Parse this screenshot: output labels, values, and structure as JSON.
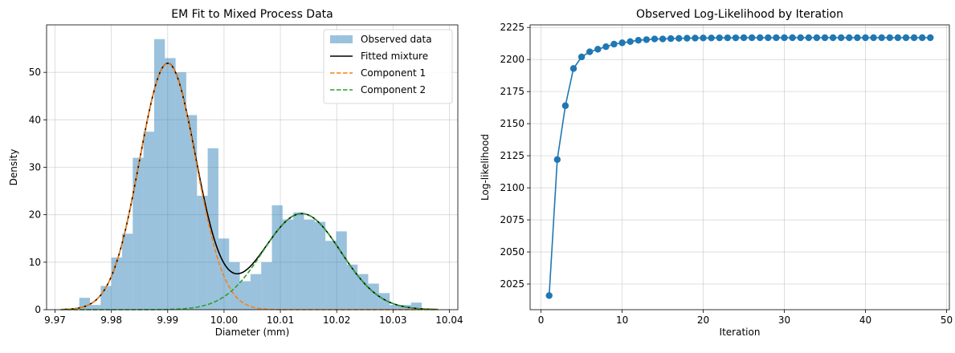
{
  "chart_data": [
    {
      "type": "histogram+line",
      "title": "EM Fit to Mixed Process Data",
      "xlabel": "Diameter (mm)",
      "ylabel": "Density",
      "xlim": [
        9.9685,
        10.0415
      ],
      "ylim": [
        0,
        60
      ],
      "xticks": [
        9.97,
        9.98,
        9.99,
        10.0,
        10.01,
        10.02,
        10.03,
        10.04
      ],
      "xtick_labels": [
        "9.97",
        "9.98",
        "9.99",
        "10.00",
        "10.01",
        "10.02",
        "10.03",
        "10.04"
      ],
      "yticks": [
        0,
        10,
        20,
        30,
        40,
        50
      ],
      "grid": true,
      "legend_position": "top-right",
      "legend": [
        "Observed data",
        "Fitted mixture",
        "Component 1",
        "Component 2"
      ],
      "histogram": {
        "name": "Observed data",
        "color": "#1f77b4",
        "alpha": 0.45,
        "bin_edges": [
          9.9743,
          9.9762,
          9.9781,
          9.98,
          9.9819,
          9.9838,
          9.9857,
          9.9876,
          9.9895,
          9.9914,
          9.9933,
          9.9952,
          9.9971,
          9.999,
          10.0009,
          10.0028,
          10.0047,
          10.0066,
          10.0085,
          10.0104,
          10.0123,
          10.0142,
          10.0161,
          10.018,
          10.0199,
          10.0218,
          10.0237,
          10.0256,
          10.0275,
          10.0294,
          10.0313,
          10.0332,
          10.0351
        ],
        "heights": [
          2.5,
          1.0,
          5.0,
          11.0,
          16.0,
          32.0,
          37.5,
          57.0,
          53.0,
          50.0,
          41.0,
          24.0,
          34.0,
          15.0,
          10.0,
          6.0,
          7.5,
          10.0,
          22.0,
          19.0,
          20.5,
          19.0,
          18.5,
          14.5,
          16.5,
          9.5,
          7.5,
          5.5,
          3.5,
          1.0,
          1.0,
          1.5
        ]
      },
      "components": [
        {
          "name": "Component 1",
          "color": "#ff7f0e",
          "dash": true,
          "weight": 0.65,
          "mean": 9.99,
          "sd": 0.005
        },
        {
          "name": "Component 2",
          "color": "#2ca02c",
          "dash": true,
          "weight": 0.35,
          "mean": 10.0138,
          "sd": 0.0069
        }
      ],
      "mixture": {
        "name": "Fitted mixture",
        "color": "#000000",
        "x_range": [
          9.971,
          10.038
        ]
      }
    },
    {
      "type": "line",
      "title": "Observed Log-Likelihood by Iteration",
      "xlabel": "Iteration",
      "ylabel": "Log-likelihood",
      "xlim": [
        -1.35,
        50.35
      ],
      "ylim": [
        2005,
        2227
      ],
      "xticks": [
        0,
        10,
        20,
        30,
        40,
        50
      ],
      "yticks": [
        2025,
        2050,
        2075,
        2100,
        2125,
        2150,
        2175,
        2200,
        2225
      ],
      "grid": true,
      "series": [
        {
          "color": "#1f77b4",
          "marker": "circle",
          "x": [
            1,
            2,
            3,
            4,
            5,
            6,
            7,
            8,
            9,
            10,
            11,
            12,
            13,
            14,
            15,
            16,
            17,
            18,
            19,
            20,
            21,
            22,
            23,
            24,
            25,
            26,
            27,
            28,
            29,
            30,
            31,
            32,
            33,
            34,
            35,
            36,
            37,
            38,
            39,
            40,
            41,
            42,
            43,
            44,
            45,
            46,
            47,
            48
          ],
          "y": [
            2016,
            2122,
            2164,
            2193,
            2202,
            2206,
            2208,
            2210,
            2212,
            2213,
            2214,
            2215,
            2215.5,
            2216,
            2216,
            2216.3,
            2216.5,
            2216.6,
            2216.7,
            2216.8,
            2216.8,
            2216.9,
            2216.9,
            2216.9,
            2217,
            2217,
            2217,
            2217,
            2217,
            2217,
            2217,
            2217,
            2217,
            2217,
            2217,
            2217,
            2217,
            2217,
            2217,
            2217,
            2217,
            2217,
            2217,
            2217,
            2217,
            2217,
            2217,
            2217
          ]
        }
      ]
    }
  ]
}
